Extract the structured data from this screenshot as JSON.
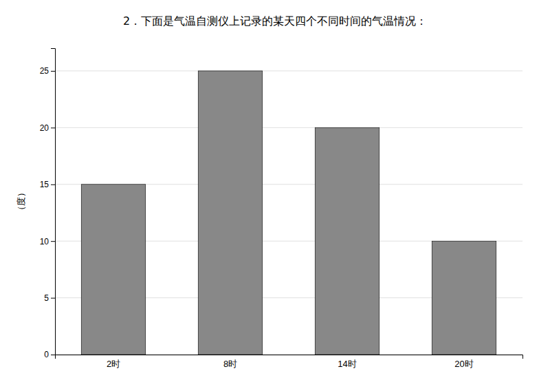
{
  "chart_data": {
    "type": "bar",
    "title": "2．下面是气温自测仪上记录的某天四个不同时间的气温情况：",
    "y_label": "（度）",
    "categories": [
      "2时",
      "8时",
      "14时",
      "20时"
    ],
    "values": [
      15,
      25,
      20,
      10
    ],
    "color": "#888888",
    "ylim": [
      0,
      27
    ],
    "yticks": [
      0,
      5,
      10,
      15,
      20,
      25
    ],
    "grid": true
  }
}
